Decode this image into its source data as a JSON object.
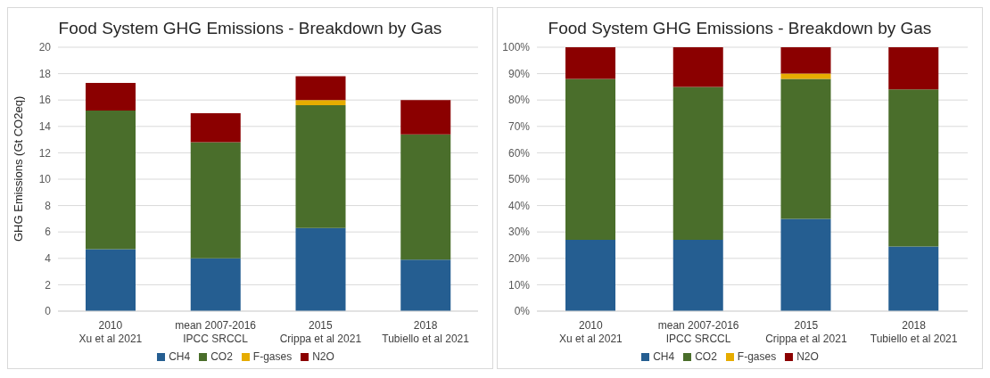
{
  "chart_data": [
    {
      "type": "bar",
      "title": "Food System GHG Emissions - Breakdown by Gas",
      "ylabel": "GHG Emissions (Gt CO2eq)",
      "categories": [
        "2010\nXu et al 2021",
        "mean 2007-2016\nIPCC SRCCL",
        "2015\nCrippa et al 2021",
        "2018\nTubiello et al 2021"
      ],
      "stacked": true,
      "ylim": [
        0,
        20
      ],
      "yticks": [
        0,
        2,
        4,
        6,
        8,
        10,
        12,
        14,
        16,
        18,
        20
      ],
      "grid": "y",
      "legend": "bottom",
      "series": [
        {
          "name": "CH4",
          "color": "#255e91",
          "values": [
            4.7,
            4.0,
            6.3,
            3.9
          ]
        },
        {
          "name": "CO2",
          "color": "#4a6e2b",
          "values": [
            10.5,
            8.8,
            9.3,
            9.5
          ]
        },
        {
          "name": "F-gases",
          "color": "#e6ac00",
          "values": [
            null,
            null,
            0.4,
            null
          ]
        },
        {
          "name": "N2O",
          "color": "#8b0000",
          "values": [
            2.1,
            2.2,
            1.8,
            2.6
          ]
        }
      ]
    },
    {
      "type": "bar",
      "title": "Food System GHG Emissions - Breakdown by Gas",
      "categories": [
        "2010\nXu et al 2021",
        "mean 2007-2016\nIPCC SRCCL",
        "2015\nCrippa et al 2021",
        "2018\nTubiello et al 2021"
      ],
      "stacked": true,
      "ylim": [
        0,
        100
      ],
      "yticks": [
        {
          "value": 0,
          "label": "0%"
        },
        {
          "value": 10,
          "label": "10%"
        },
        {
          "value": 20,
          "label": "20%"
        },
        {
          "value": 30,
          "label": "30%"
        },
        {
          "value": 40,
          "label": "40%"
        },
        {
          "value": 50,
          "label": "50%"
        },
        {
          "value": 60,
          "label": "60%"
        },
        {
          "value": 70,
          "label": "70%"
        },
        {
          "value": 80,
          "label": "80%"
        },
        {
          "value": 90,
          "label": "90%"
        },
        {
          "value": 100,
          "label": "100%"
        }
      ],
      "grid": "y",
      "legend": "bottom",
      "series": [
        {
          "name": "CH4",
          "color": "#255e91",
          "values": [
            27,
            27,
            35,
            24.5
          ]
        },
        {
          "name": "CO2",
          "color": "#4a6e2b",
          "values": [
            61,
            58,
            53,
            59.5
          ]
        },
        {
          "name": "F-gases",
          "color": "#e6ac00",
          "values": [
            null,
            null,
            2,
            null
          ]
        },
        {
          "name": "N2O",
          "color": "#8b0000",
          "values": [
            12,
            15,
            10,
            16
          ]
        }
      ]
    }
  ]
}
